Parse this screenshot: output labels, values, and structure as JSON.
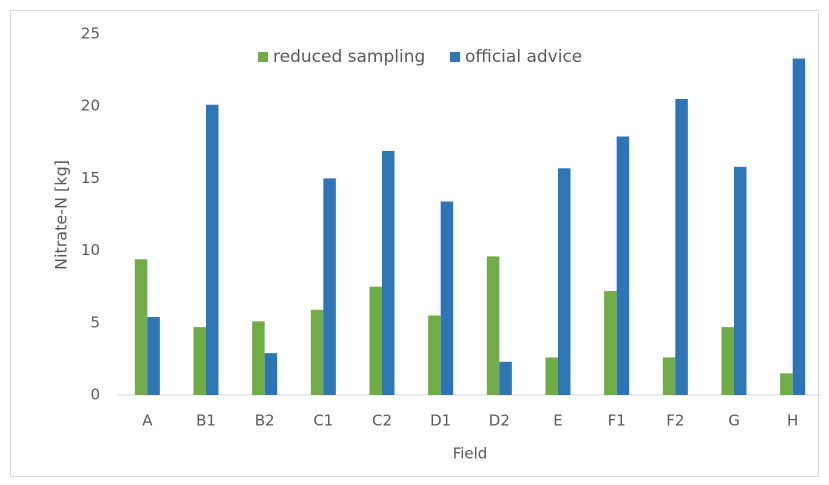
{
  "chart_data": {
    "type": "bar",
    "x_label": "Field",
    "y_label": "Nitrate-N [kg]",
    "categories": [
      "A",
      "B1",
      "B2",
      "C1",
      "C2",
      "D1",
      "D2",
      "E",
      "F1",
      "F2",
      "G",
      "H"
    ],
    "series": [
      {
        "name": "reduced sampling",
        "color": "#70ad47",
        "values": [
          9.4,
          4.7,
          5.1,
          5.9,
          7.5,
          5.5,
          9.6,
          2.6,
          7.2,
          2.6,
          4.7,
          1.5
        ]
      },
      {
        "name": "official advice",
        "color": "#2e75b6",
        "values": [
          5.4,
          20.1,
          2.9,
          15.0,
          16.9,
          13.4,
          2.3,
          15.7,
          17.9,
          20.5,
          15.8,
          23.3
        ]
      }
    ],
    "ylim": [
      0,
      25
    ],
    "yticks": [
      0,
      5,
      10,
      15,
      20,
      25
    ],
    "grid": false,
    "legend": "top"
  }
}
